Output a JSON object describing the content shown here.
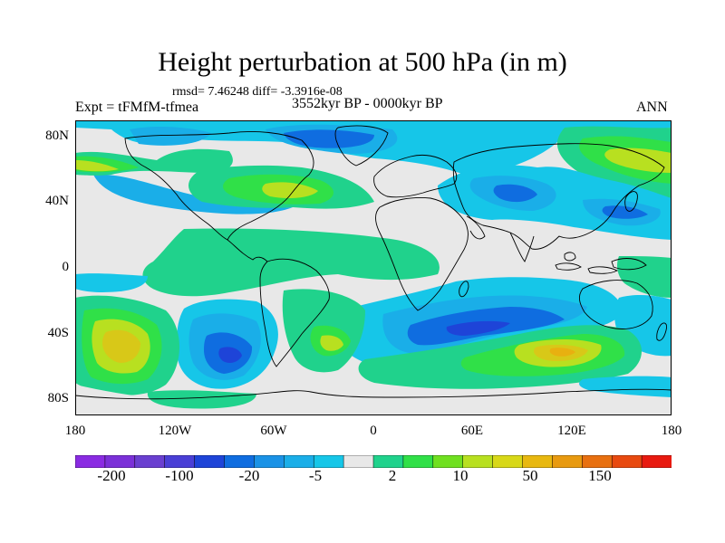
{
  "title": "Height perturbation at 500 hPa (in m)",
  "stats": "rmsd= 7.46248 diff= -3.3916e-08",
  "period": "3552kyr BP - 0000kyr BP",
  "experiment": "Expt = tFMfM-tfmea",
  "season": "ANN",
  "lat_labels": [
    "80N",
    "40N",
    "0",
    "40S",
    "80S"
  ],
  "lon_labels": [
    "180",
    "120W",
    "60W",
    "0",
    "60E",
    "120E",
    "180"
  ],
  "colorbar": {
    "colors": [
      "#8a2be2",
      "#7b30d8",
      "#6a3fd0",
      "#4a3fd6",
      "#1e44d8",
      "#0f6de0",
      "#1a92e6",
      "#1aaee8",
      "#16c6e8",
      "#e8e8e8",
      "#20d28c",
      "#30e048",
      "#70e020",
      "#b8e020",
      "#d8d818",
      "#e8b810",
      "#e89a10",
      "#e87010",
      "#e84a10",
      "#e81a10"
    ],
    "labels": [
      "-200",
      "-100",
      "-20",
      "-5",
      "2",
      "10",
      "50",
      "150"
    ]
  },
  "field_colors": {
    "neutral": "#e8e8e8",
    "pos_weak": "#20d28c",
    "pos_mid": "#30e048",
    "pos_strong": "#b8e020",
    "pos_peak": "#d8c818",
    "pos_max": "#e8b010",
    "neg_weak": "#16c6e8",
    "neg_mid": "#1aaee8",
    "neg_strong": "#0f6de0",
    "neg_peak": "#1e44d8"
  }
}
